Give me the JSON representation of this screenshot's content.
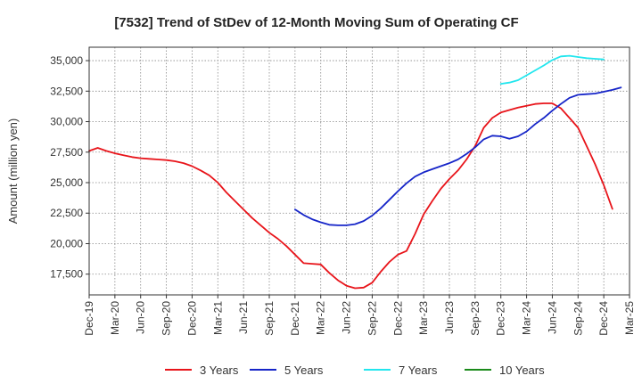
{
  "chart_data": {
    "type": "line",
    "title": "[7532]  Trend of StDev of 12-Month Moving Sum of Operating CF",
    "xlabel": "",
    "ylabel": "Amount (million yen)",
    "ylim": [
      15800,
      36100
    ],
    "yticks": [
      17500,
      20000,
      22500,
      25000,
      27500,
      30000,
      32500,
      35000
    ],
    "ytick_labels": [
      "17,500",
      "20,000",
      "22,500",
      "25,000",
      "27,500",
      "30,000",
      "32,500",
      "35,000"
    ],
    "x_start": "2019-12",
    "x_end": "2025-03",
    "xtick_months": [
      0,
      3,
      6,
      9,
      12,
      15,
      18,
      21,
      24,
      27,
      30,
      33,
      36,
      39,
      42,
      45,
      48,
      51,
      54,
      57,
      60,
      63
    ],
    "xtick_labels": [
      "Dec-19",
      "Mar-20",
      "Jun-20",
      "Sep-20",
      "Dec-20",
      "Mar-21",
      "Jun-21",
      "Sep-21",
      "Dec-21",
      "Mar-22",
      "Jun-22",
      "Sep-22",
      "Dec-22",
      "Mar-23",
      "Jun-23",
      "Sep-23",
      "Dec-23",
      "Mar-24",
      "Jun-24",
      "Sep-24",
      "Dec-24",
      "Mar-25"
    ],
    "grid": true,
    "legend_position": "bottom",
    "series": [
      {
        "name": "3 Years",
        "color": "#e8141a",
        "start_month": 0,
        "values": [
          27600,
          27850,
          27600,
          27400,
          27250,
          27100,
          27000,
          26950,
          26900,
          26850,
          26750,
          26600,
          26350,
          26000,
          25600,
          25000,
          24200,
          23500,
          22800,
          22100,
          21500,
          20900,
          20400,
          19800,
          19100,
          18400,
          18350,
          18300,
          17600,
          17000,
          16550,
          16350,
          16400,
          16800,
          17700,
          18500,
          19100,
          19400,
          20800,
          22400,
          23500,
          24500,
          25300,
          26000,
          26900,
          28000,
          29500,
          30300,
          30750,
          30950,
          31150,
          31300,
          31450,
          31500,
          31500,
          31100,
          30300,
          29500,
          28000,
          26500,
          24800,
          22850
        ]
      },
      {
        "name": "5 Years",
        "color": "#1625c8",
        "start_month": 24,
        "values": [
          22800,
          22350,
          22000,
          21750,
          21550,
          21500,
          21500,
          21600,
          21850,
          22300,
          22900,
          23600,
          24300,
          24950,
          25500,
          25850,
          26100,
          26350,
          26600,
          26900,
          27350,
          27900,
          28550,
          28850,
          28800,
          28600,
          28800,
          29200,
          29800,
          30300,
          30900,
          31450,
          31950,
          32200,
          32250,
          32300,
          32450,
          32600,
          32800
        ]
      },
      {
        "name": "7 Years",
        "color": "#22e6ee",
        "start_month": 48,
        "values": [
          33100,
          33200,
          33400,
          33800,
          34200,
          34600,
          35050,
          35350,
          35400,
          35300,
          35200,
          35150,
          35100
        ]
      },
      {
        "name": "10 Years",
        "color": "#1a8a1a",
        "start_month": 0,
        "values": []
      }
    ]
  }
}
